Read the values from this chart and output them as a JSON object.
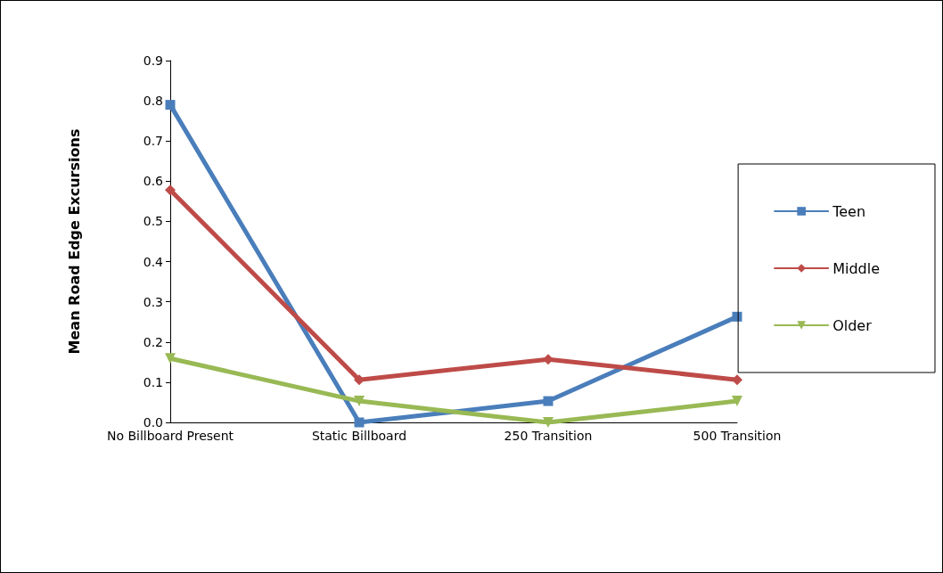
{
  "chart_data": {
    "type": "line",
    "ylabel": "Mean Road Edge Excursions",
    "categories": [
      "No Billboard Present",
      "Static Billboard",
      "250 Transition",
      "500 Transition"
    ],
    "series": [
      {
        "name": "Teen",
        "color": "#4a7ebb",
        "marker": "square",
        "values": [
          0.79,
          0,
          0.053,
          0.263
        ]
      },
      {
        "name": "Middle",
        "color": "#be4b48",
        "marker": "diamond",
        "values": [
          0.578,
          0.106,
          0.157,
          0.106
        ]
      },
      {
        "name": "Older",
        "color": "#98b954",
        "marker": "triangle",
        "values": [
          0.159,
          0.053,
          0,
          0.053
        ]
      }
    ],
    "ylim": [
      0,
      0.9
    ],
    "yticks": [
      {
        "value": 0,
        "label": "0.0"
      },
      {
        "value": 0.1,
        "label": "0.1"
      },
      {
        "value": 0.2,
        "label": "0.2"
      },
      {
        "value": 0.3,
        "label": "0.3"
      },
      {
        "value": 0.4,
        "label": "0.4"
      },
      {
        "value": 0.5,
        "label": "0.5"
      },
      {
        "value": 0.6,
        "label": "0.6"
      },
      {
        "value": 0.7,
        "label": "0.7"
      },
      {
        "value": 0.8,
        "label": "0.8"
      },
      {
        "value": 0.9,
        "label": "0.9"
      }
    ],
    "grid": false,
    "legend": "right",
    "line_style": "solid"
  }
}
